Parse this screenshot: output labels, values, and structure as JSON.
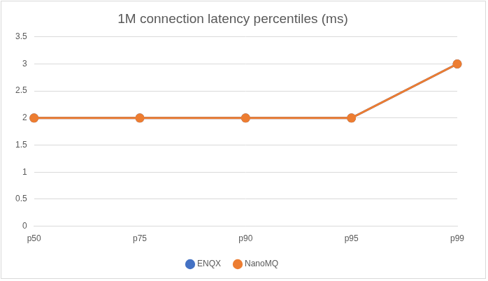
{
  "chart_data": {
    "type": "line",
    "title": "1M connection latency percentiles (ms)",
    "categories": [
      "p50",
      "p75",
      "p90",
      "p95",
      "p99"
    ],
    "series": [
      {
        "name": "ENQX",
        "color": "#4472c4",
        "values": [
          2,
          2,
          2,
          2,
          3
        ]
      },
      {
        "name": "NanoMQ",
        "color": "#ed7d31",
        "values": [
          2,
          2,
          2,
          2,
          3
        ]
      }
    ],
    "ylim": [
      0,
      3.5
    ],
    "yticks": [
      0,
      0.5,
      1,
      1.5,
      2,
      2.5,
      3,
      3.5
    ],
    "grid": true,
    "legend": "bottom"
  }
}
